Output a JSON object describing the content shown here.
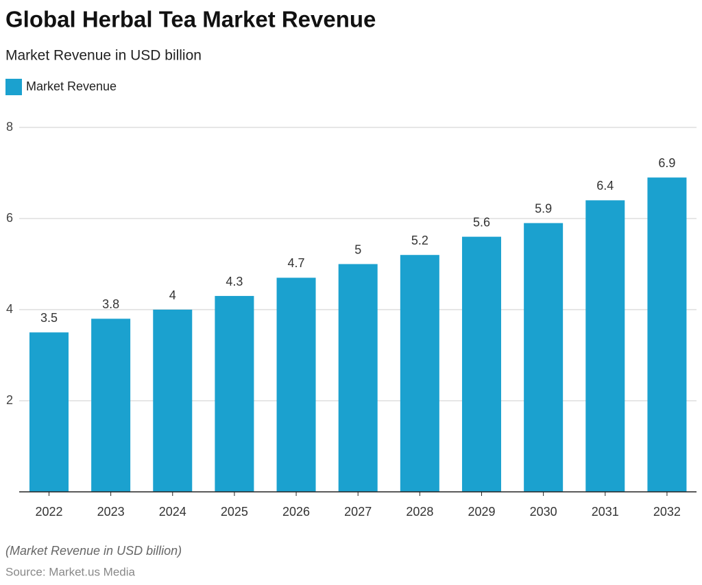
{
  "chart_data": {
    "type": "bar",
    "title": "Global Herbal Tea Market Revenue",
    "subtitle": "Market Revenue in USD billion",
    "series": [
      {
        "name": "Market Revenue",
        "color": "#1ba1cf",
        "values": [
          3.5,
          3.8,
          4,
          4.3,
          4.7,
          5,
          5.2,
          5.6,
          5.9,
          6.4,
          6.9
        ]
      }
    ],
    "categories": [
      "2022",
      "2023",
      "2024",
      "2025",
      "2026",
      "2027",
      "2028",
      "2029",
      "2030",
      "2031",
      "2032"
    ],
    "ylim": [
      0,
      8
    ],
    "yticks": [
      2,
      4,
      6,
      8
    ],
    "grid": true,
    "note": "(Market Revenue in USD billion)",
    "source": "Source: Market.us Media"
  }
}
